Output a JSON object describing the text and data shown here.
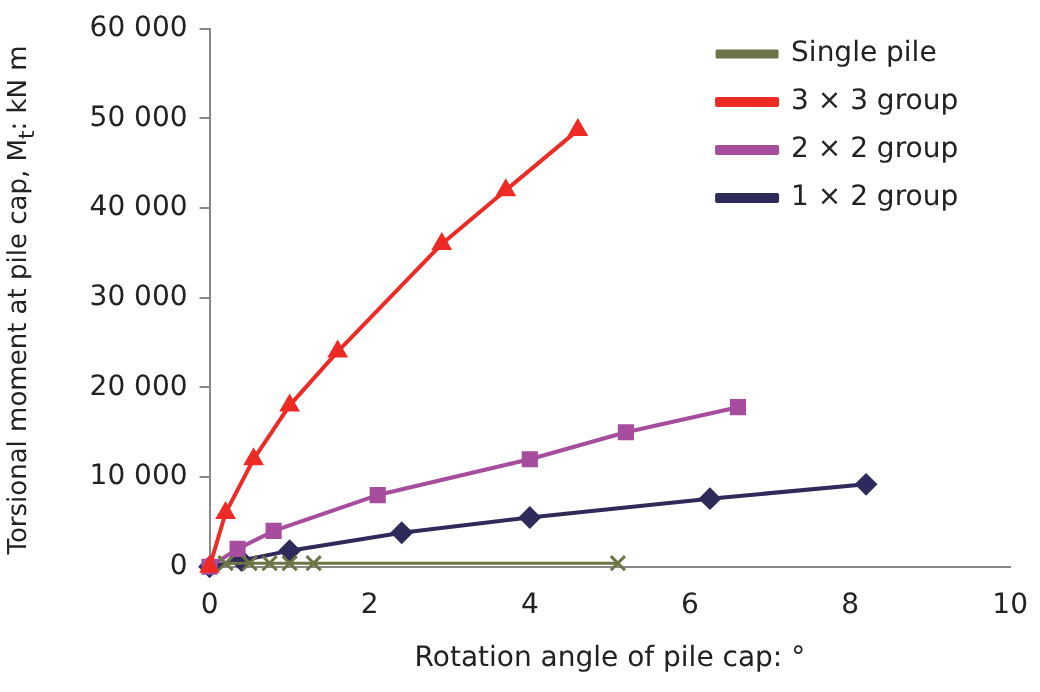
{
  "chart_data": {
    "type": "line",
    "xlabel": "Rotation angle of pile cap: °",
    "ylabel": "Torsional moment at pile cap, M$_{t}$: kN m",
    "xlim": [
      0,
      10
    ],
    "xticks": [
      0,
      2,
      4,
      6,
      8,
      10
    ],
    "ylim": [
      0,
      60000
    ],
    "yticks": [
      {
        "value": 0,
        "label": "0"
      },
      {
        "value": 10000,
        "label": "10 000"
      },
      {
        "value": 20000,
        "label": "20 000"
      },
      {
        "value": 30000,
        "label": "30 000"
      },
      {
        "value": 40000,
        "label": "40 000"
      },
      {
        "value": 50000,
        "label": "50 000"
      },
      {
        "value": 60000,
        "label": "60 000"
      }
    ],
    "grid": false,
    "legend": "top right",
    "line_style": "solid",
    "series": [
      {
        "name": "1 × 2 group",
        "color": "#2e2a5a",
        "marker": "diamond",
        "x": [
          0,
          0.4,
          1,
          2.4,
          4,
          6.25,
          8.2
        ],
        "values": [
          0,
          700,
          1800,
          3800,
          5500,
          7600,
          9200
        ]
      },
      {
        "name": "2 × 2 group",
        "color": "#a64d9e",
        "marker": "square",
        "x": [
          0,
          0.35,
          0.8,
          2.1,
          4,
          5.2,
          6.6
        ],
        "values": [
          0,
          2000,
          4000,
          8000,
          12000,
          15000,
          17800
        ]
      },
      {
        "name": "3 × 3 group",
        "color": "#ee2a24",
        "marker": "triangle",
        "x": [
          0,
          0.2,
          0.55,
          1,
          1.6,
          2.9,
          3.7,
          4.6
        ],
        "values": [
          0,
          6000,
          12000,
          18000,
          24000,
          36000,
          42000,
          48700
        ]
      },
      {
        "name": "Single pile",
        "color": "#6b7545",
        "marker": "cross",
        "x": [
          0.2,
          0.5,
          0.75,
          1,
          1.3,
          5.1
        ],
        "values": [
          400,
          400,
          400,
          400,
          400,
          400
        ]
      }
    ]
  }
}
